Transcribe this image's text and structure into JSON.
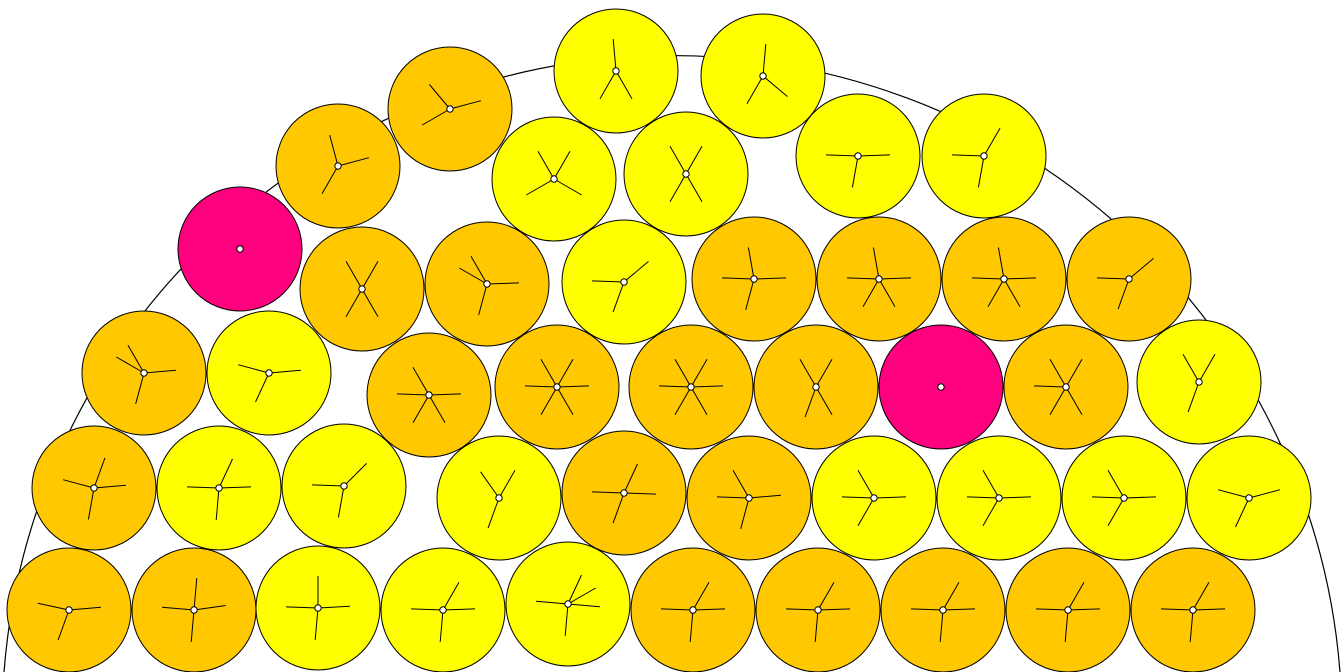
{
  "colors": {
    "yellow": "#ffff00",
    "orange": "#ffc800",
    "magenta": "#ff007f",
    "stroke": "#000000",
    "background": "#ffffff"
  },
  "circles": [
    {
      "c": "orange",
      "a": [
        -168,
        -5,
        110
      ]
    },
    {
      "c": "orange",
      "a": [
        -175,
        -8,
        -85,
        95
      ]
    },
    {
      "c": "yellow",
      "a": [
        -178,
        -3,
        -90,
        95
      ]
    },
    {
      "c": "yellow",
      "a": [
        -178,
        -2,
        -60,
        95
      ]
    },
    {
      "c": "yellow",
      "a": [
        -175,
        5,
        -65,
        -30,
        95
      ]
    },
    {
      "c": "orange",
      "a": [
        -178,
        -2,
        -60,
        95
      ]
    },
    {
      "c": "orange",
      "a": [
        -178,
        -2,
        -60,
        95
      ]
    },
    {
      "c": "orange",
      "a": [
        -178,
        -2,
        -60,
        95
      ]
    },
    {
      "c": "orange",
      "a": [
        -178,
        -2,
        -60,
        95
      ]
    },
    {
      "c": "orange",
      "a": [
        -178,
        -2,
        -60,
        95
      ]
    },
    {
      "c": "orange",
      "a": [
        -165,
        -5,
        -70,
        100
      ]
    },
    {
      "c": "yellow",
      "a": [
        -178,
        -2,
        -65,
        95
      ]
    },
    {
      "c": "yellow",
      "a": [
        -178,
        -45,
        100
      ]
    },
    {
      "c": "yellow",
      "a": [
        -125,
        -60,
        110
      ]
    },
    {
      "c": "orange",
      "a": [
        -178,
        2,
        -65,
        110
      ]
    },
    {
      "c": "orange",
      "a": [
        -178,
        -5,
        -120,
        105
      ]
    },
    {
      "c": "yellow",
      "a": [
        -178,
        -2,
        -120,
        120
      ]
    },
    {
      "c": "yellow",
      "a": [
        -178,
        -2,
        -120,
        120
      ]
    },
    {
      "c": "yellow",
      "a": [
        -178,
        -2,
        -120,
        120
      ]
    },
    {
      "c": "yellow",
      "a": [
        -15,
        115,
        -165
      ]
    },
    {
      "c": "orange",
      "a": [
        -150,
        -5,
        -120,
        105
      ]
    },
    {
      "c": "yellow",
      "a": [
        -5,
        115,
        -165
      ]
    },
    {
      "c": "orange",
      "a": [
        -178,
        -2,
        -120,
        60,
        120
      ]
    },
    {
      "c": "orange",
      "a": [
        -178,
        -2,
        -120,
        -60,
        120,
        60
      ]
    },
    {
      "c": "orange",
      "a": [
        -178,
        -2,
        -120,
        -60,
        120,
        60
      ]
    },
    {
      "c": "orange",
      "a": [
        -120,
        -60,
        60,
        110
      ]
    },
    {
      "c": "magenta",
      "a": []
    },
    {
      "c": "orange",
      "a": [
        -178,
        -120,
        -60,
        120,
        60
      ]
    },
    {
      "c": "yellow",
      "a": [
        -120,
        -60,
        110
      ]
    },
    {
      "c": "magenta",
      "a": []
    },
    {
      "c": "orange",
      "a": [
        -120,
        -60,
        120,
        60
      ]
    },
    {
      "c": "orange",
      "a": [
        -150,
        -2,
        -120,
        105
      ]
    },
    {
      "c": "yellow",
      "a": [
        -178,
        -40,
        110
      ]
    },
    {
      "c": "orange",
      "a": [
        -178,
        -2,
        -100,
        105
      ]
    },
    {
      "c": "orange",
      "a": [
        -178,
        -2,
        -100,
        60,
        120
      ]
    },
    {
      "c": "orange",
      "a": [
        -178,
        -2,
        -100,
        60,
        120
      ]
    },
    {
      "c": "orange",
      "a": [
        -178,
        -40,
        110
      ]
    },
    {
      "c": "orange",
      "a": [
        -105,
        120,
        -15
      ]
    },
    {
      "c": "orange",
      "a": [
        -130,
        150,
        -15
      ]
    },
    {
      "c": "yellow",
      "a": [
        -60,
        -120,
        150,
        30
      ]
    },
    {
      "c": "yellow",
      "a": [
        -120,
        -60,
        120,
        60
      ]
    },
    {
      "c": "yellow",
      "a": [
        -178,
        -2,
        100
      ]
    },
    {
      "c": "yellow",
      "a": [
        -178,
        -60,
        100
      ]
    },
    {
      "c": "yellow",
      "a": [
        -95,
        120,
        60
      ]
    },
    {
      "c": "yellow",
      "a": [
        -85,
        120,
        40
      ]
    }
  ]
}
